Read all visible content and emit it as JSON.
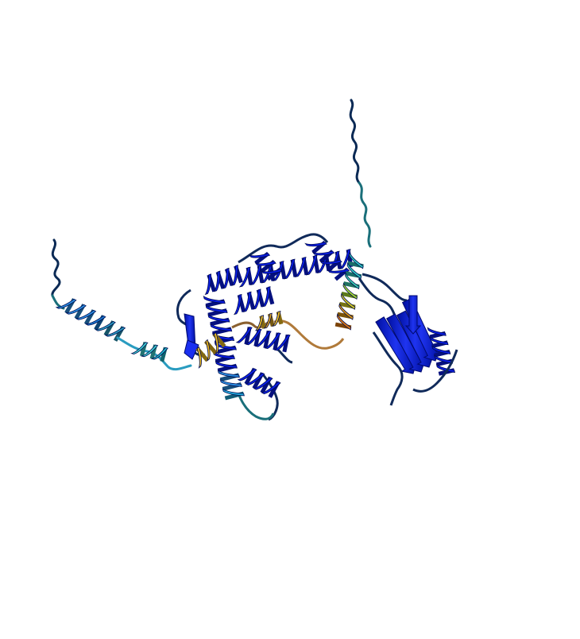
{
  "scene": {
    "subject": "protein-structure-cartoon",
    "background_color": "#ffffff",
    "palette": {
      "very_high": "#0a1ee6",
      "high": "#2a8ee0",
      "mid_cyan": "#3cd0d0",
      "low_yellow": "#f0c020",
      "low_orange": "#e07a10",
      "very_low": "#0b2a55",
      "loop_dark": "#102a5a",
      "loop_teal": "#1a6f7a"
    }
  }
}
